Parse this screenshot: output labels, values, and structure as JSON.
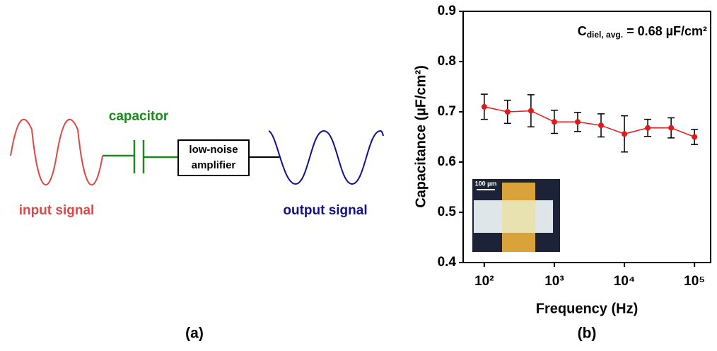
{
  "diagram": {
    "capacitor": "capacitor",
    "amplifier": [
      "low-noise",
      "amplifier"
    ],
    "input": "input signal",
    "output": "output signal",
    "caption": "(a)"
  },
  "chart_data": {
    "type": "line",
    "caption": "(b)",
    "x_label": "Frequency (Hz)",
    "y_label": "Capacitance (µF/cm²)",
    "annotation": {
      "symbol": "C",
      "subscript": "diel, avg.",
      "text": "= 0.68 µF/cm²"
    },
    "log_x": true,
    "xlim": [
      50,
      170000
    ],
    "xticks": [
      {
        "value": 100,
        "label": "10²"
      },
      {
        "value": 1000,
        "label": "10³"
      },
      {
        "value": 10000,
        "label": "10⁴"
      },
      {
        "value": 100000,
        "label": "10⁵"
      }
    ],
    "ylim": [
      0.4,
      0.9
    ],
    "yticks": [
      0.4,
      0.5,
      0.6,
      0.7,
      0.8,
      0.9
    ],
    "x": [
      100,
      215,
      464,
      1000,
      2154,
      4642,
      10000,
      21544,
      46416,
      100000
    ],
    "series": [
      {
        "color": "#e31a1c",
        "values": [
          0.71,
          0.7,
          0.702,
          0.68,
          0.68,
          0.673,
          0.656,
          0.668,
          0.668,
          0.65
        ],
        "errors": [
          0.025,
          0.023,
          0.032,
          0.023,
          0.019,
          0.023,
          0.036,
          0.017,
          0.02,
          0.015
        ]
      }
    ],
    "inset": {
      "scale_label": "100 µm"
    }
  }
}
